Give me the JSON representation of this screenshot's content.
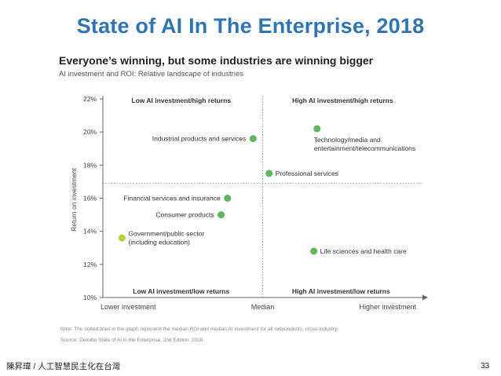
{
  "slide": {
    "title": "State of AI In The Enterprise, 2018",
    "footer": "陳昇瑋 / 人工智慧民主化在台灣",
    "page_number": "33"
  },
  "chart_data": {
    "type": "scatter",
    "title": "Everyone’s winning, but some industries are winning bigger",
    "subtitle": "AI investment and ROI: Relative landscape of industries",
    "xlabel": "",
    "ylabel": "Return on investment",
    "x_tick_labels": [
      "Lower investment",
      "Median",
      "Higher investment"
    ],
    "x_range": [
      0,
      10
    ],
    "x_median": 5,
    "ylim": [
      10,
      22
    ],
    "y_ticks": [
      10,
      12,
      14,
      16,
      18,
      20,
      22
    ],
    "y_tick_labels": [
      "10%",
      "12%",
      "14%",
      "16%",
      "18%",
      "20%",
      "22%"
    ],
    "y_median": 16.9,
    "grid": false,
    "quadrant_labels": {
      "top_left": "Low AI investment/high returns",
      "top_right": "High AI investment/high returns",
      "bottom_left": "Low AI investment/low returns",
      "bottom_right": "High AI investment/low returns"
    },
    "points": [
      {
        "label": "Industrial products and services",
        "label_lines": [
          "Industrial products and services"
        ],
        "x": 4.7,
        "y": 19.6,
        "color": "#5cb85c",
        "label_side": "left"
      },
      {
        "label": "Technology/media and entertainment/telecommunications",
        "label_lines": [
          "Technology/media and",
          "entertainment/telecommunications"
        ],
        "x": 6.7,
        "y": 20.2,
        "color": "#5cb85c",
        "label_side": "below"
      },
      {
        "label": "Professional services",
        "label_lines": [
          "Professional services"
        ],
        "x": 5.2,
        "y": 17.5,
        "color": "#5cb85c",
        "label_side": "right"
      },
      {
        "label": "Financial services and insurance",
        "label_lines": [
          "Financial services and insurance"
        ],
        "x": 3.9,
        "y": 16.0,
        "color": "#5cb85c",
        "label_side": "left"
      },
      {
        "label": "Consumer products",
        "label_lines": [
          "Consumer products"
        ],
        "x": 3.7,
        "y": 15.0,
        "color": "#5cb85c",
        "label_side": "left"
      },
      {
        "label": "Government/public sector (including education)",
        "label_lines": [
          "Government/public sector",
          "(including education)"
        ],
        "x": 0.6,
        "y": 13.6,
        "color": "#b5d334",
        "label_side": "right"
      },
      {
        "label": "Life sciences and health care",
        "label_lines": [
          "Life sciences and health care"
        ],
        "x": 6.6,
        "y": 12.8,
        "color": "#5cb85c",
        "label_side": "right"
      }
    ]
  },
  "notes": {
    "note": "Note: The dotted lines in the graph represent the median ROI and median AI investment for all respondents, cross-industry.",
    "source": "Source: Deloitte State of AI in the Enterprise, 2nd Edition, 2018."
  }
}
